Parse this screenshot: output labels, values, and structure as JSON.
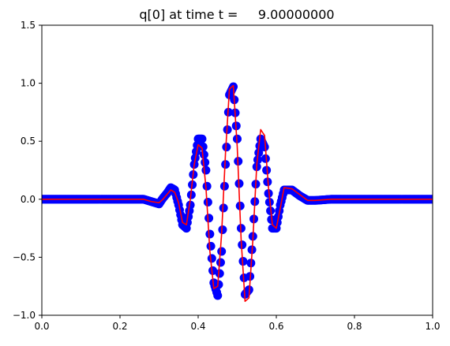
{
  "chart_data": {
    "type": "line",
    "title": "q[0] at time t =     9.00000000",
    "xlabel": "",
    "ylabel": "",
    "xlim": [
      0.0,
      1.0
    ],
    "ylim": [
      -1.0,
      1.5
    ],
    "x_ticks": [
      "0.0",
      "0.2",
      "0.4",
      "0.6",
      "0.8",
      "1.0"
    ],
    "y_ticks": [
      "−1.0",
      "−0.5",
      "0.0",
      "0.5",
      "1.0",
      "1.5"
    ],
    "grid": false,
    "series": [
      {
        "kind": "scatter",
        "color": "#0000ff",
        "marker": "circle",
        "x": [
          0.0,
          0.06,
          0.12,
          0.18,
          0.22,
          0.26,
          0.28,
          0.3,
          0.31,
          0.32,
          0.33,
          0.34,
          0.35,
          0.36,
          0.37,
          0.38,
          0.39,
          0.4,
          0.41,
          0.42,
          0.43,
          0.44,
          0.45,
          0.46,
          0.47,
          0.48,
          0.49,
          0.5,
          0.51,
          0.52,
          0.53,
          0.54,
          0.55,
          0.56,
          0.57,
          0.58,
          0.59,
          0.6,
          0.61,
          0.62,
          0.64,
          0.66,
          0.68,
          0.7,
          0.74,
          0.78,
          0.84,
          0.9,
          0.96,
          1.0
        ],
        "y": [
          0.0,
          0.0,
          0.0,
          0.0,
          0.0,
          0.0,
          -0.02,
          -0.04,
          0.01,
          0.05,
          0.1,
          0.08,
          -0.05,
          -0.22,
          -0.25,
          -0.05,
          0.3,
          0.52,
          0.52,
          0.25,
          -0.3,
          -0.72,
          -0.83,
          -0.45,
          0.3,
          0.9,
          0.97,
          0.52,
          -0.25,
          -0.82,
          -0.78,
          -0.32,
          0.28,
          0.52,
          0.45,
          0.05,
          -0.25,
          -0.25,
          -0.05,
          0.08,
          0.08,
          0.03,
          -0.01,
          -0.01,
          0.0,
          0.0,
          0.0,
          0.0,
          0.0,
          0.0
        ]
      },
      {
        "kind": "line",
        "color": "#ff0000",
        "x": [
          0.0,
          0.06,
          0.12,
          0.18,
          0.22,
          0.26,
          0.28,
          0.3,
          0.31,
          0.32,
          0.33,
          0.34,
          0.35,
          0.36,
          0.37,
          0.38,
          0.39,
          0.4,
          0.41,
          0.42,
          0.43,
          0.44,
          0.45,
          0.46,
          0.47,
          0.48,
          0.49,
          0.5,
          0.51,
          0.52,
          0.53,
          0.54,
          0.55,
          0.56,
          0.57,
          0.58,
          0.59,
          0.6,
          0.61,
          0.62,
          0.64,
          0.66,
          0.68,
          0.7,
          0.74,
          0.78,
          0.84,
          0.9,
          0.96,
          1.0
        ],
        "y": [
          0.0,
          0.0,
          0.0,
          0.0,
          0.0,
          0.0,
          -0.02,
          -0.03,
          0.0,
          0.04,
          0.08,
          0.06,
          -0.03,
          -0.2,
          -0.22,
          0.0,
          0.3,
          0.47,
          0.44,
          0.1,
          -0.45,
          -0.77,
          -0.75,
          -0.3,
          0.4,
          0.95,
          0.98,
          0.45,
          -0.35,
          -0.88,
          -0.85,
          -0.35,
          0.3,
          0.6,
          0.55,
          0.1,
          -0.22,
          -0.25,
          -0.08,
          0.1,
          0.09,
          0.04,
          -0.01,
          -0.01,
          0.0,
          0.0,
          0.0,
          0.0,
          0.0,
          0.0
        ]
      }
    ]
  }
}
